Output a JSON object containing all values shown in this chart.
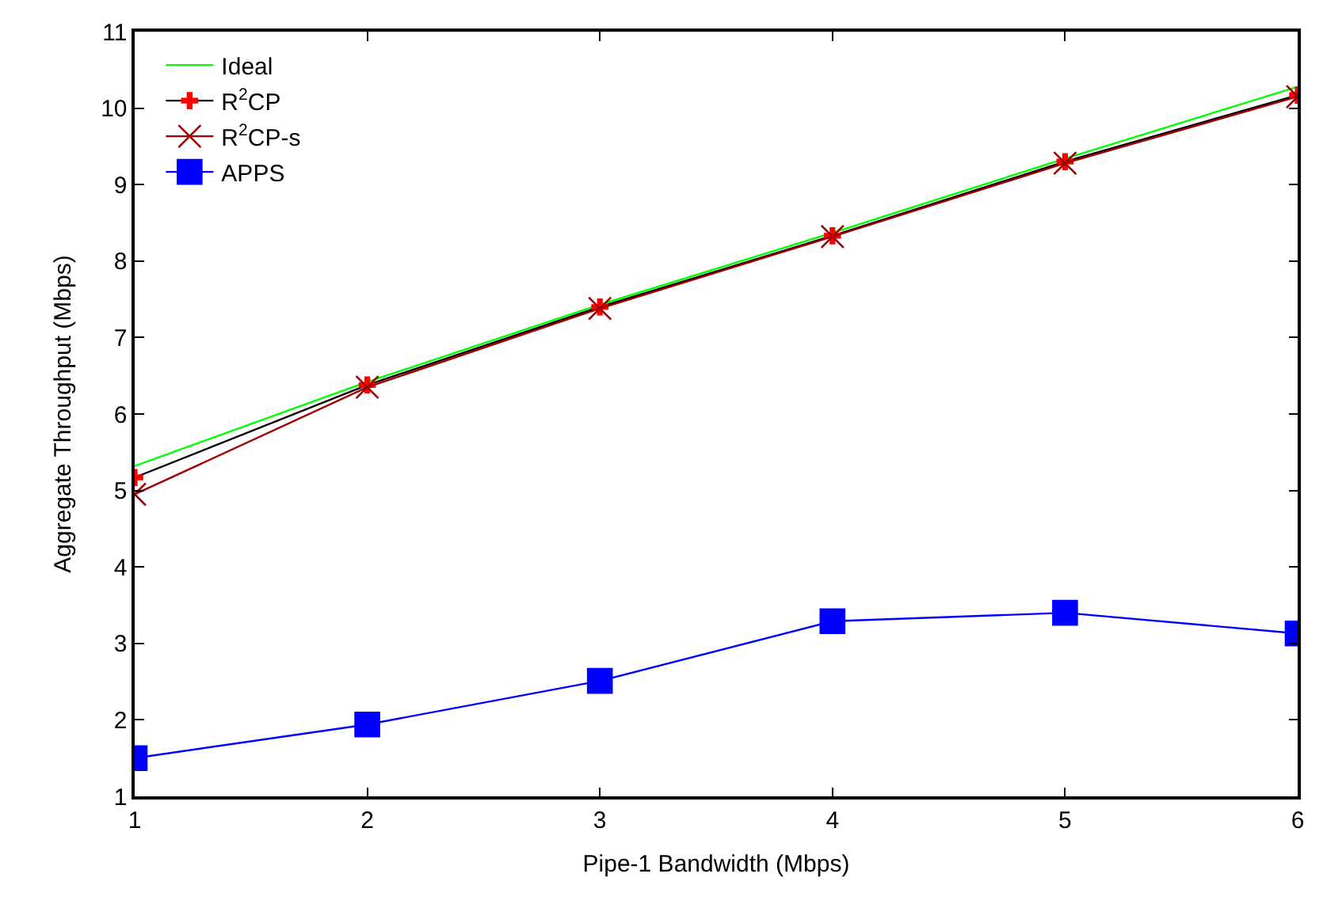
{
  "chart_data": {
    "type": "line",
    "xlabel": "Pipe-1 Bandwidth (Mbps)",
    "ylabel": "Aggregate Throughput (Mbps)",
    "x": [
      1,
      2,
      3,
      4,
      5,
      6
    ],
    "xlim": [
      1,
      6
    ],
    "xticks": [
      1,
      2,
      3,
      4,
      5,
      6
    ],
    "ylim": [
      1,
      11
    ],
    "yticks": [
      1,
      2,
      3,
      4,
      5,
      6,
      7,
      8,
      9,
      10,
      11
    ],
    "legend": "top left",
    "series": [
      {
        "name": "Ideal",
        "color": "#00ff00",
        "marker": "none",
        "values": [
          5.32,
          6.42,
          7.43,
          8.37,
          9.34,
          10.28
        ]
      },
      {
        "name": "R$^{2}$CP",
        "color": "#000000",
        "colors": [
          "#ff0000",
          "#ff0000",
          "#ff0000",
          "#ff0000",
          "#ff0000",
          "#ff0000"
        ],
        "marker": "cross",
        "values": [
          5.17,
          6.38,
          7.4,
          8.33,
          9.3,
          10.17
        ]
      },
      {
        "name": "R$^{2}$CP-s",
        "color": "#a00000",
        "marker": "x",
        "values": [
          4.95,
          6.35,
          7.38,
          8.32,
          9.28,
          10.15
        ]
      },
      {
        "name": "APPS",
        "color": "#0000ff",
        "marker": "square",
        "values": [
          1.5,
          1.94,
          2.51,
          3.29,
          3.4,
          3.13
        ]
      }
    ]
  }
}
